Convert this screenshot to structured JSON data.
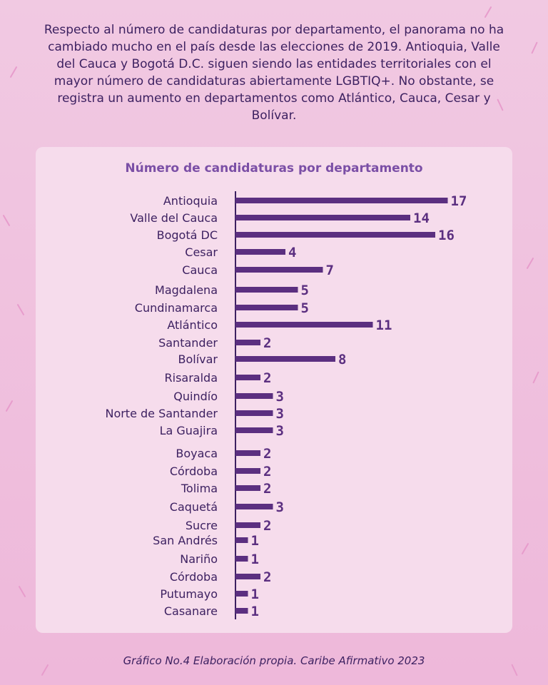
{
  "intro_text": "Respecto al número de candidaturas por departamento, el panorama no ha cambiado mucho en el país desde las elecciones de 2019. Antioquia, Valle del Cauca y Bogotá D.C. siguen siendo las entidades territoriales con el mayor número de candidaturas abiertamente LGBTIQ+. No obstante, se registra un aumento en departamentos como Atlántico, Cauca, Cesar y Bolívar.",
  "caption": "Gráfico No.4 Elaboración propia. Caribe Afirmativo 2023",
  "colors": {
    "bar": "#5b2f80",
    "axis": "#3d2161",
    "panel": "#f6dcec",
    "title": "#7b4fa6"
  },
  "chart_data": {
    "type": "bar",
    "orientation": "horizontal",
    "title": "Número de candidaturas por departamento",
    "categories": [
      "Antioquia",
      "Valle del Cauca",
      "Bogotá DC",
      "Cesar",
      "Cauca",
      "Magdalena",
      "Cundinamarca",
      "Atlántico",
      "Santander",
      "Bolívar",
      "Risaralda",
      "Quindío",
      "Norte de Santander",
      "La Guajira",
      "Boyaca",
      "Córdoba",
      "Tolima",
      "Caquetá",
      "Sucre",
      "San Andrés",
      "Nariño",
      "Córdoba",
      "Putumayo",
      "Casanare"
    ],
    "values": [
      17,
      14,
      16,
      4,
      7,
      5,
      5,
      11,
      2,
      8,
      2,
      3,
      3,
      3,
      2,
      2,
      2,
      3,
      2,
      1,
      1,
      2,
      1,
      1
    ],
    "data_labels": true,
    "grid": false,
    "legend": "none"
  }
}
